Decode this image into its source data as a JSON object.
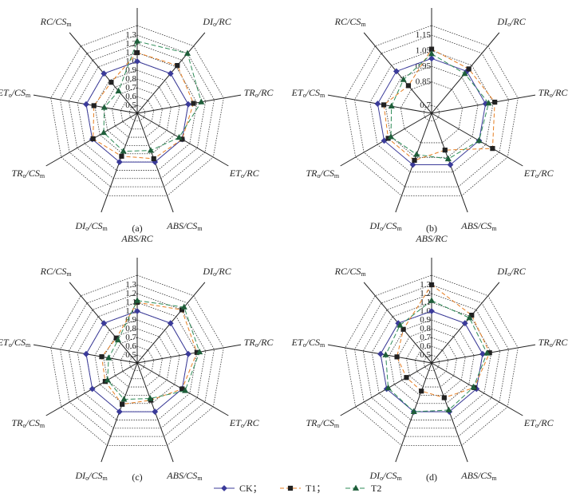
{
  "legend": {
    "items": [
      {
        "label": "CK；",
        "color": "#3b3b9a",
        "marker": "diamond",
        "dash": ""
      },
      {
        "label": "T1；",
        "color": "#e67e22",
        "marker": "square",
        "dash": "5,3"
      },
      {
        "label": "T2",
        "color": "#2e8b57",
        "marker": "triangle",
        "dash": "6,3"
      }
    ]
  },
  "chart_data": [
    {
      "type": "radar",
      "panel": "(a)",
      "axes": [
        "ABS/RC",
        "DIo/RC",
        "TRo/RC",
        "ETo/RC",
        "ABS/CSm",
        "DIo/CSm",
        "TRo/CSm",
        "ETo/CSm",
        "RC/CSm"
      ],
      "ticks": [
        "0.5",
        "0.6",
        "0.7",
        "0.8",
        "0.9",
        "1.0",
        "1.1",
        "1.2",
        "1.3"
      ],
      "range": [
        0.5,
        1.3
      ],
      "series": [
        {
          "name": "CK",
          "values": [
            1.0,
            1.0,
            1.0,
            1.0,
            1.0,
            1.0,
            1.0,
            1.0,
            1.0
          ]
        },
        {
          "name": "T1",
          "values": [
            1.1,
            1.12,
            1.06,
            1.0,
            0.96,
            0.93,
            0.99,
            0.91,
            0.87
          ]
        },
        {
          "name": "T2",
          "values": [
            1.23,
            1.3,
            1.15,
            0.96,
            0.86,
            0.87,
            0.85,
            0.79,
            0.74
          ]
        }
      ]
    },
    {
      "type": "radar",
      "panel": "(b)",
      "axes": [
        "ABS/RC",
        "DIo/RC",
        "TRo/RC",
        "ETo/RC",
        "ABS/CSm",
        "DIo/CSm",
        "TRo/CSm",
        "ETo/CSm",
        "RC/CSm"
      ],
      "ticks": [
        "0.7",
        "0.85",
        "0.95",
        "1.05",
        "1.15"
      ],
      "tick_values": [
        0.7,
        0.85,
        0.95,
        1.05,
        1.15
      ],
      "range": [
        0.7,
        1.15
      ],
      "series": [
        {
          "name": "CK",
          "values": [
            1.0,
            1.0,
            1.0,
            1.0,
            1.0,
            1.0,
            1.0,
            1.0,
            1.0
          ]
        },
        {
          "name": "T1",
          "values": [
            1.06,
            1.02,
            1.06,
            1.1,
            0.9,
            0.97,
            0.97,
            0.96,
            0.88
          ]
        },
        {
          "name": "T2",
          "values": [
            1.03,
            0.98,
            1.02,
            1.0,
            0.96,
            0.93,
            0.95,
            0.91,
            0.93
          ]
        }
      ]
    },
    {
      "type": "radar",
      "panel": "(c)",
      "axes": [
        "ABS/RC",
        "DIo/RC",
        "TRo/RC",
        "ETo/RC",
        "ABS/CSm",
        "DIo/CSm",
        "TRo/CSm",
        "ETo/CSm",
        "RC/CSm"
      ],
      "ticks": [
        "0.5",
        "0.6",
        "0.7",
        "0.8",
        "0.9",
        "1.0",
        "1.1",
        "1.2",
        "1.3"
      ],
      "range": [
        0.5,
        1.3
      ],
      "series": [
        {
          "name": "CK",
          "values": [
            1.0,
            1.0,
            1.0,
            1.0,
            1.0,
            1.0,
            1.0,
            1.0,
            1.0
          ]
        },
        {
          "name": "T1",
          "values": [
            1.1,
            1.2,
            1.1,
            1.0,
            0.86,
            0.91,
            0.83,
            0.82,
            0.78
          ]
        },
        {
          "name": "T2",
          "values": [
            1.12,
            1.24,
            1.13,
            1.04,
            0.84,
            0.85,
            0.8,
            0.74,
            0.75
          ]
        }
      ]
    },
    {
      "type": "radar",
      "panel": "(d)",
      "axes": [
        "ABS/RC",
        "DIo/RC",
        "TRo/RC",
        "ETo/RC",
        "ABS/CSm",
        "DIo/CSm",
        "TRo/CSm",
        "ETo/CSm",
        "RC/CSm"
      ],
      "ticks": [
        "0.5",
        "0.6",
        "0.7",
        "0.8",
        "0.9",
        "1.0",
        "1.1",
        "1.2",
        "1.3"
      ],
      "range": [
        0.5,
        1.3
      ],
      "series": [
        {
          "name": "CK",
          "values": [
            1.0,
            1.0,
            1.0,
            1.0,
            1.0,
            1.0,
            1.0,
            1.0,
            1.0
          ]
        },
        {
          "name": "T1",
          "values": [
            1.3,
            1.12,
            1.08,
            0.97,
            0.83,
            0.75,
            0.74,
            0.81,
            0.91
          ]
        },
        {
          "name": "T2",
          "values": [
            1.12,
            1.08,
            1.05,
            0.96,
            0.98,
            1.0,
            0.98,
            0.94,
            0.97
          ]
        }
      ]
    }
  ]
}
